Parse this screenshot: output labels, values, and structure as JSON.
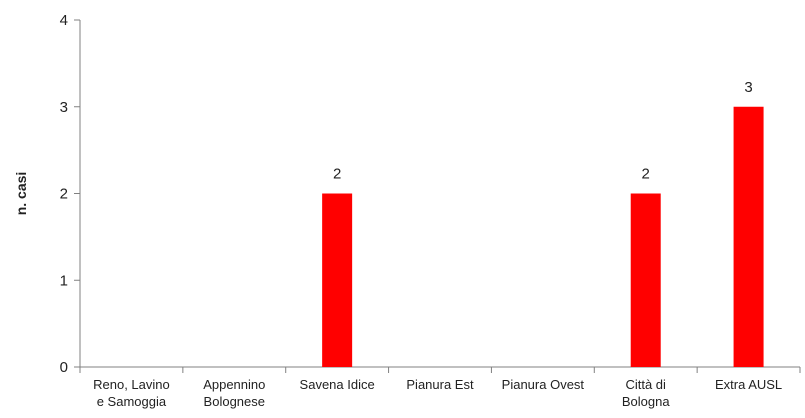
{
  "chart_data": {
    "type": "bar",
    "title": "",
    "xlabel": "",
    "ylabel": "n. casi",
    "ylim": [
      0,
      4
    ],
    "yticks": [
      0,
      1,
      2,
      3,
      4
    ],
    "grid": false,
    "legend": "none",
    "bar_color": "#ff0000",
    "categories": [
      [
        "Reno, Lavino",
        "e Samoggia"
      ],
      [
        "Appennino",
        "Bolognese"
      ],
      [
        "Savena Idice"
      ],
      [
        "Pianura Est"
      ],
      [
        "Pianura Ovest"
      ],
      [
        "Città di",
        "Bologna"
      ],
      [
        "Extra AUSL"
      ]
    ],
    "values": [
      0,
      0,
      2,
      0,
      0,
      2,
      3
    ],
    "data_labels": [
      "",
      "",
      "2",
      "",
      "",
      "2",
      "3"
    ]
  }
}
